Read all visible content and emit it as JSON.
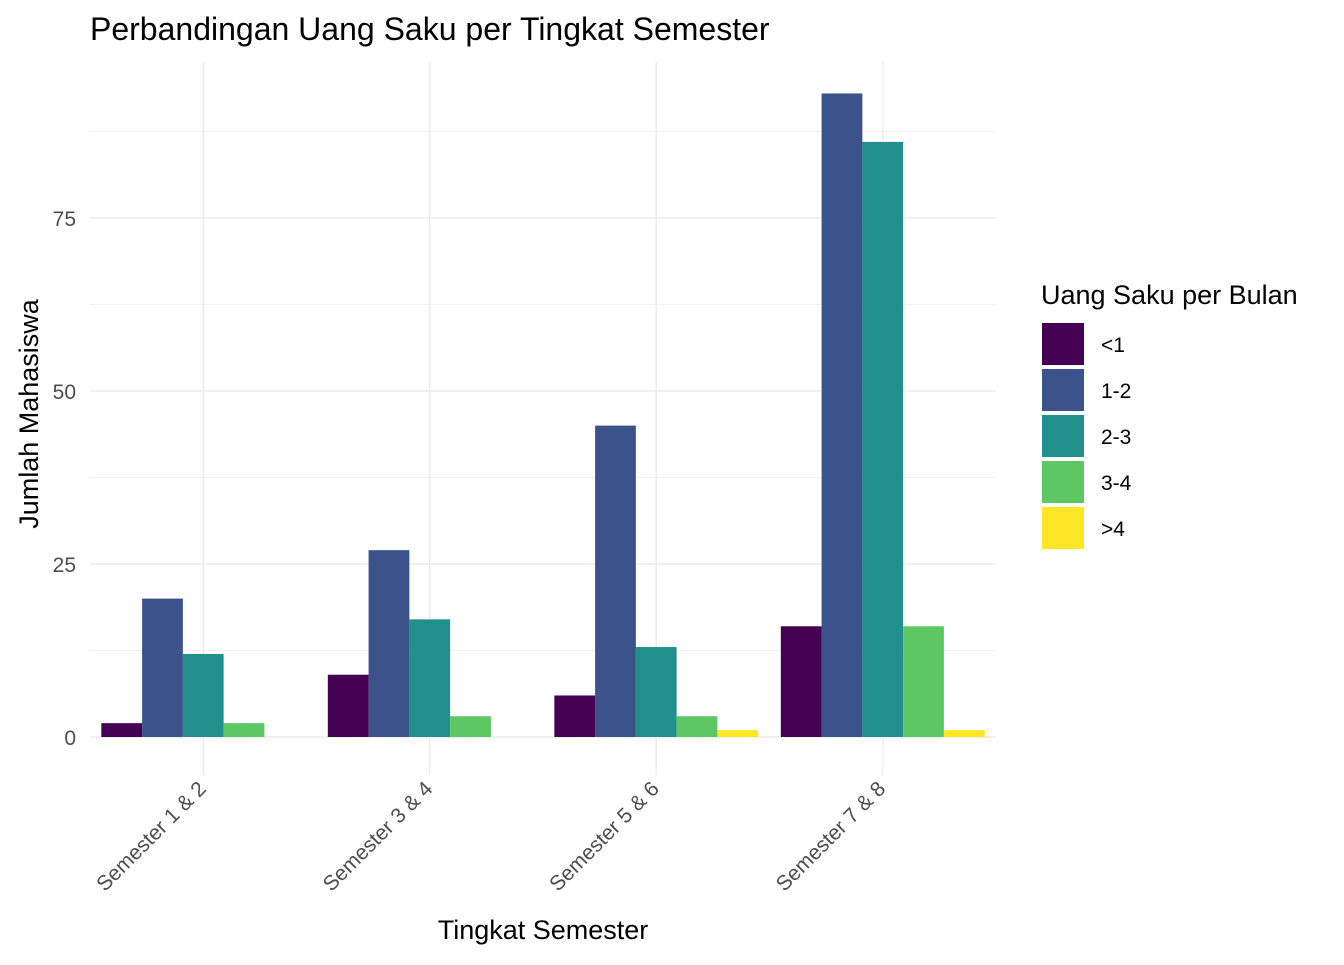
{
  "chart_data": {
    "type": "bar",
    "title": "Perbandingan Uang Saku per Tingkat Semester",
    "xlabel": "Tingkat Semester",
    "ylabel": "Jumlah Mahasiswa",
    "categories": [
      "Semester 1 & 2",
      "Semester 3 & 4",
      "Semester 5 & 6",
      "Semester 7 & 8"
    ],
    "ylim": [
      0,
      100
    ],
    "yticks": [
      0,
      25,
      50,
      75
    ],
    "ytick_labels": [
      "0",
      "25",
      "50",
      "75"
    ],
    "grid": true,
    "legend": {
      "title": "Uang Saku per Bulan",
      "position": "right"
    },
    "series": [
      {
        "name": "<1",
        "color": "#440154",
        "values": [
          2,
          9,
          6,
          16
        ]
      },
      {
        "name": "1-2",
        "color": "#3B528B",
        "values": [
          20,
          27,
          45,
          93
        ]
      },
      {
        "name": "2-3",
        "color": "#21908C",
        "values": [
          12,
          17,
          13,
          86
        ]
      },
      {
        "name": "3-4",
        "color": "#5DC863",
        "values": [
          2,
          3,
          3,
          16
        ]
      },
      {
        "name": ">4",
        "color": "#FDE725",
        "values": [
          0,
          0,
          1,
          1
        ]
      }
    ]
  }
}
